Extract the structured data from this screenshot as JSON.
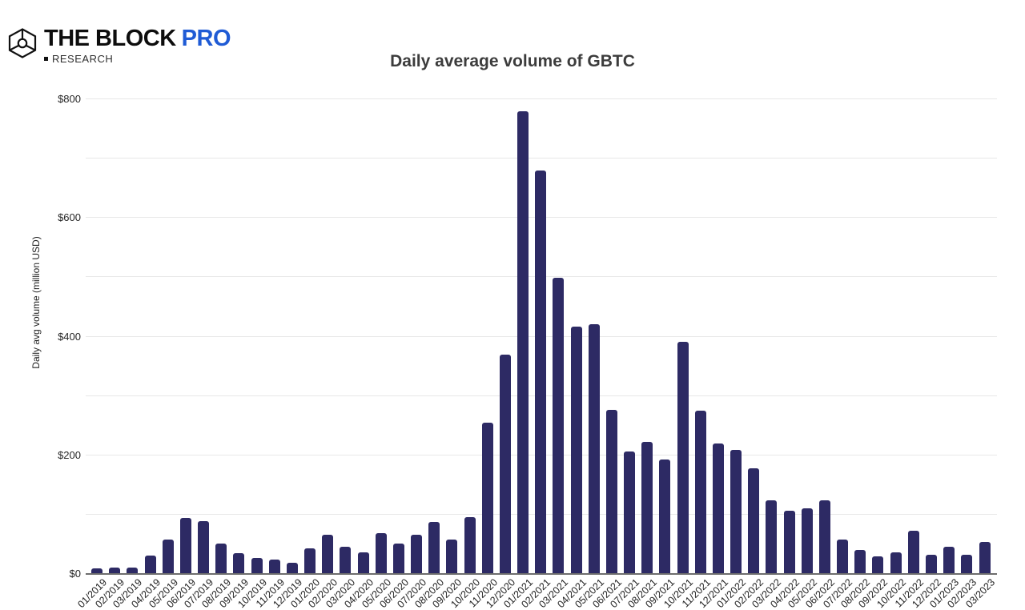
{
  "header": {
    "logo": {
      "brand": "THE BLOCK",
      "pro": "PRO",
      "sub": "RESEARCH",
      "pro_color": "#1f5bd5"
    }
  },
  "chart_data": {
    "type": "bar",
    "title": "Daily average volume of GBTC",
    "xlabel": "",
    "ylabel": "Daily avg volume (million USD)",
    "unit": "million USD",
    "ylim": [
      0,
      800
    ],
    "gridlines_every": 100,
    "grid_on": true,
    "legend": "none",
    "y_ticks": [
      {
        "label": "$800",
        "value": 800
      },
      {
        "label": "$600",
        "value": 600
      },
      {
        "label": "$400",
        "value": 400
      },
      {
        "label": "$200",
        "value": 200
      },
      {
        "label": "$0",
        "value": 0
      }
    ],
    "bar_color": "#2d2a64",
    "categories": [
      "01/2019",
      "02/2019",
      "03/2019",
      "04/2019",
      "05/2019",
      "06/2019",
      "07/2019",
      "08/2019",
      "09/2019",
      "10/2019",
      "11/2019",
      "12/2019",
      "01/2020",
      "02/2020",
      "03/2020",
      "04/2020",
      "05/2020",
      "06/2020",
      "07/2020",
      "08/2020",
      "09/2020",
      "10/2020",
      "11/2020",
      "12/2020",
      "01/2021",
      "02/2021",
      "03/2021",
      "04/2021",
      "05/2021",
      "06/2021",
      "07/2021",
      "08/2021",
      "09/2021",
      "10/2021",
      "11/2021",
      "12/2021",
      "01/2022",
      "02/2022",
      "03/2022",
      "04/2022",
      "05/2022",
      "06/2022",
      "07/2022",
      "08/2022",
      "09/2022",
      "10/2022",
      "11/2022",
      "12/2022",
      "01/2023",
      "02/2023",
      "03/2023"
    ],
    "values": [
      8,
      10,
      10,
      30,
      56,
      93,
      88,
      50,
      34,
      25,
      23,
      18,
      42,
      65,
      44,
      35,
      67,
      50,
      65,
      87,
      56,
      95,
      253,
      368,
      779,
      679,
      498,
      415,
      420,
      275,
      205,
      221,
      192,
      390,
      274,
      219,
      208,
      177,
      123,
      105,
      109,
      123,
      57,
      39,
      29,
      35,
      72,
      31,
      44,
      31,
      53
    ]
  }
}
